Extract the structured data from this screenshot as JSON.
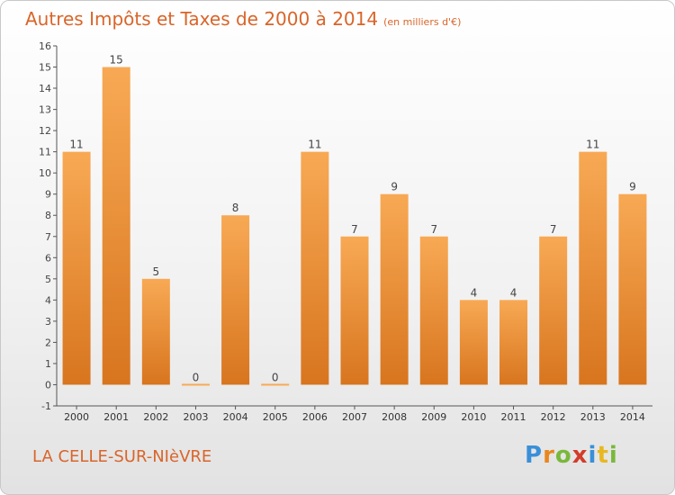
{
  "header": {
    "title": "Autres Impôts et Taxes de 2000 à 2014",
    "subtitle": "(en milliers d'€)"
  },
  "footer": {
    "commune": "LA CELLE-SUR-NIèVRE",
    "logo_text": "Proxiti"
  },
  "colors": {
    "bar_top": "#f8a954",
    "bar_bottom": "#d8751f",
    "title": "#d9652a",
    "axis": "#555555"
  },
  "chart_data": {
    "type": "bar",
    "title": "Autres Impôts et Taxes de 2000 à 2014",
    "subtitle": "(en milliers d'€)",
    "categories": [
      "2000",
      "2001",
      "2002",
      "2003",
      "2004",
      "2005",
      "2006",
      "2007",
      "2008",
      "2009",
      "2010",
      "2011",
      "2012",
      "2013",
      "2014"
    ],
    "values": [
      11,
      15,
      5,
      0,
      8,
      0,
      11,
      7,
      9,
      7,
      4,
      4,
      7,
      11,
      9
    ],
    "data_labels": [
      "11",
      "15",
      "5",
      "0",
      "8",
      "0",
      "11",
      "7",
      "9",
      "7",
      "4",
      "4",
      "7",
      "11",
      "9"
    ],
    "y_ticks": [
      "-1",
      "0",
      "1",
      "2",
      "3",
      "4",
      "5",
      "6",
      "7",
      "8",
      "9",
      "10",
      "11",
      "12",
      "13",
      "14",
      "15",
      "16"
    ],
    "ylim": [
      -1,
      16
    ],
    "grid": false,
    "xlabel": "",
    "ylabel": ""
  }
}
